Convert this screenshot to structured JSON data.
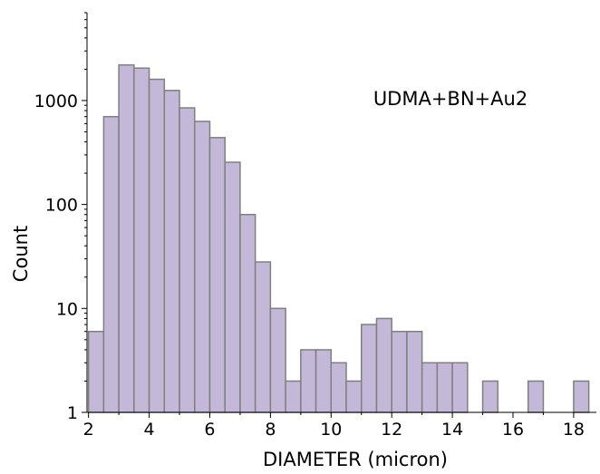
{
  "chart_data": {
    "type": "bar",
    "xlabel": "DIAMETER (micron)",
    "ylabel": "Count",
    "annotation": "UDMA+BN+Au2",
    "y_scale": "log",
    "xlim": [
      1.95,
      18.75
    ],
    "ylim": [
      1,
      7000
    ],
    "x_ticks": [
      2,
      4,
      6,
      8,
      10,
      12,
      14,
      16,
      18
    ],
    "y_ticks": [
      {
        "value": 1,
        "label": "1"
      },
      {
        "value": 10,
        "label": "10"
      },
      {
        "value": 100,
        "label": "100"
      },
      {
        "value": 1000,
        "label": "1000"
      }
    ],
    "bin_width": 0.5,
    "bar_color": "#c4b8d9",
    "edge_color": "#7f7f7f",
    "bins": [
      {
        "x": 2.0,
        "count": 6
      },
      {
        "x": 2.5,
        "count": 700
      },
      {
        "x": 3.0,
        "count": 2200
      },
      {
        "x": 3.5,
        "count": 2050
      },
      {
        "x": 4.0,
        "count": 1600
      },
      {
        "x": 4.5,
        "count": 1250
      },
      {
        "x": 5.0,
        "count": 850
      },
      {
        "x": 5.5,
        "count": 630
      },
      {
        "x": 6.0,
        "count": 440
      },
      {
        "x": 6.5,
        "count": 255
      },
      {
        "x": 7.0,
        "count": 80
      },
      {
        "x": 7.5,
        "count": 28
      },
      {
        "x": 8.0,
        "count": 10
      },
      {
        "x": 8.5,
        "count": 2
      },
      {
        "x": 9.0,
        "count": 4
      },
      {
        "x": 9.5,
        "count": 4
      },
      {
        "x": 10.0,
        "count": 3
      },
      {
        "x": 10.5,
        "count": 2
      },
      {
        "x": 11.0,
        "count": 7
      },
      {
        "x": 11.5,
        "count": 8
      },
      {
        "x": 12.0,
        "count": 6
      },
      {
        "x": 12.5,
        "count": 6
      },
      {
        "x": 13.0,
        "count": 3
      },
      {
        "x": 13.5,
        "count": 3
      },
      {
        "x": 14.0,
        "count": 3
      },
      {
        "x": 15.0,
        "count": 2
      },
      {
        "x": 16.5,
        "count": 2
      },
      {
        "x": 18.0,
        "count": 2
      }
    ]
  }
}
